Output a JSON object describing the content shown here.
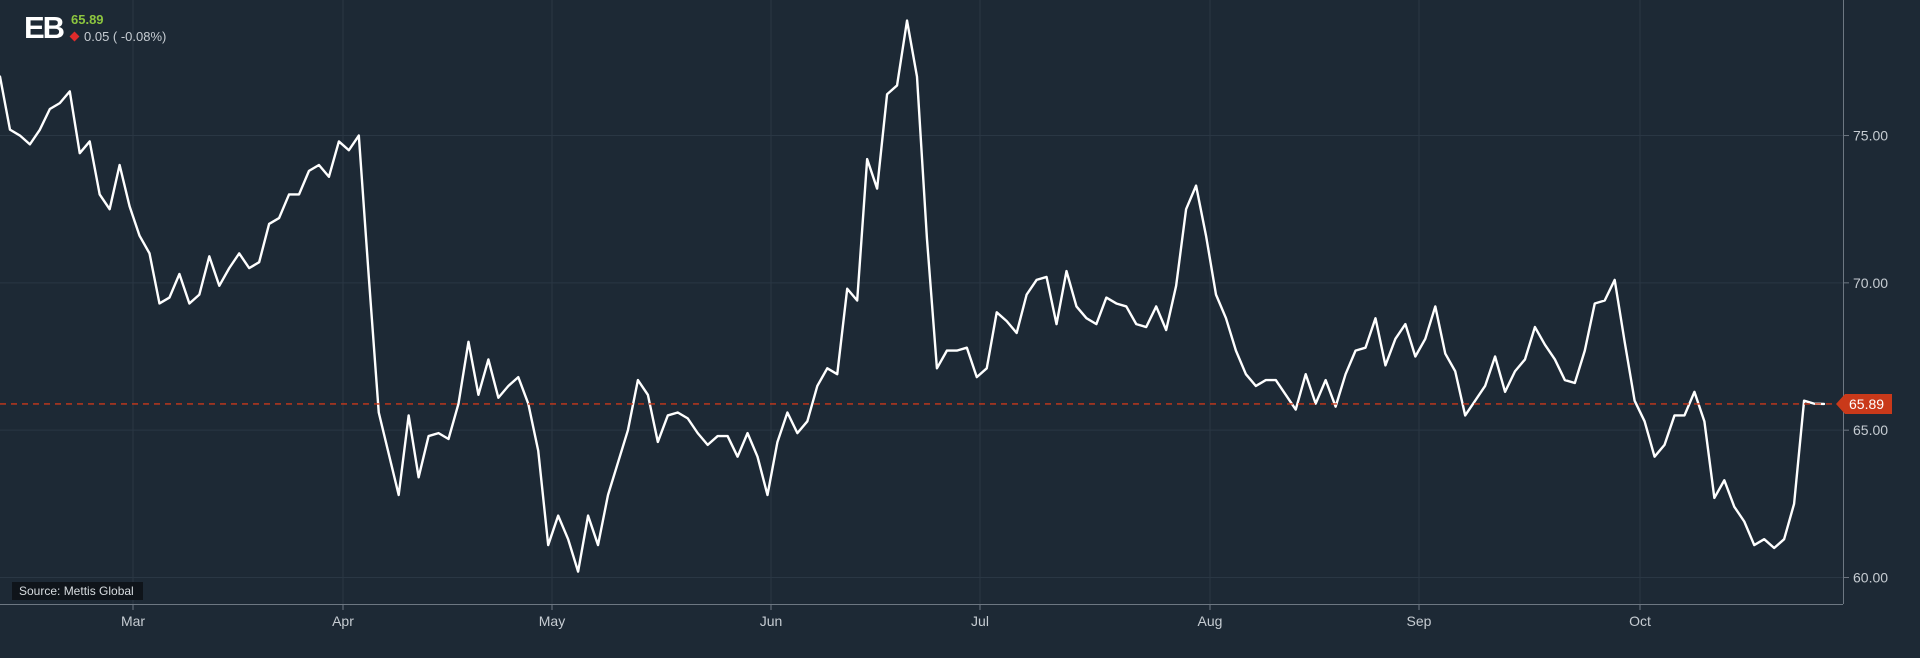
{
  "header": {
    "logo_text": "EB",
    "price": "65.89",
    "change": "0.05 ( -0.08%)",
    "price_color": "#8dc63f",
    "down_color": "#e02b2b",
    "change_arrow_icon": "down-diamond-icon"
  },
  "source": "Source: Mettis Global",
  "last_price_label": "65.89",
  "colors": {
    "background": "#1d2935",
    "line": "#ffffff",
    "grid": "#2a3744",
    "axis": "#6d7782",
    "tick_text": "#c6ccd2",
    "last_price": "#c9391a"
  },
  "chart_data": {
    "type": "line",
    "title": "",
    "xlabel": "",
    "ylabel": "",
    "x_tick_labels": [
      "Mar",
      "Apr",
      "May",
      "Jun",
      "Jul",
      "Aug",
      "Sep",
      "Oct"
    ],
    "y_tick_labels": [
      "60.00",
      "65.00",
      "70.00",
      "75.00"
    ],
    "ylim": [
      59.1,
      79.6
    ],
    "grid": true,
    "last_price": 65.89,
    "series": [
      {
        "values": [
          77.0,
          75.2,
          75.0,
          74.7,
          75.2,
          75.9,
          76.1,
          76.5,
          74.4,
          74.8,
          73.0,
          72.5,
          74.0,
          72.6,
          71.6,
          71.0,
          69.3,
          69.5,
          70.3,
          69.3,
          69.6,
          70.9,
          69.9,
          70.5,
          71.0,
          70.5,
          70.7,
          72.0,
          72.2,
          73.0,
          73.0,
          73.8,
          74.0,
          73.6,
          74.8,
          74.5,
          75.0,
          70.2,
          65.6,
          64.2,
          62.8,
          65.5,
          63.4,
          64.8,
          64.9,
          64.7,
          65.9,
          68.0,
          66.2,
          67.4,
          66.1,
          66.5,
          66.8,
          65.9,
          64.3,
          61.1,
          62.1,
          61.3,
          60.2,
          62.1,
          61.1,
          62.8,
          63.9,
          65.0,
          66.7,
          66.2,
          64.6,
          65.5,
          65.6,
          65.4,
          64.9,
          64.5,
          64.8,
          64.8,
          64.1,
          64.9,
          64.1,
          62.8,
          64.6,
          65.6,
          64.9,
          65.3,
          66.5,
          67.1,
          66.9,
          69.8,
          69.4,
          74.2,
          73.2,
          76.4,
          76.7,
          78.9,
          77.0,
          71.5,
          67.1,
          67.7,
          67.7,
          67.8,
          66.8,
          67.1,
          69.0,
          68.7,
          68.3,
          69.6,
          70.1,
          70.2,
          68.6,
          70.4,
          69.2,
          68.8,
          68.6,
          69.5,
          69.3,
          69.2,
          68.6,
          68.5,
          69.2,
          68.4,
          69.9,
          72.5,
          73.3,
          71.6,
          69.6,
          68.8,
          67.7,
          66.9,
          66.5,
          66.7,
          66.7,
          66.2,
          65.7,
          66.9,
          65.9,
          66.7,
          65.8,
          66.9,
          67.7,
          67.8,
          68.8,
          67.2,
          68.1,
          68.6,
          67.5,
          68.1,
          69.2,
          67.6,
          67.0,
          65.5,
          66.0,
          66.5,
          67.5,
          66.3,
          67.0,
          67.4,
          68.5,
          67.9,
          67.4,
          66.7,
          66.6,
          67.7,
          69.3,
          69.4,
          70.1,
          68.0,
          66.0,
          65.3,
          64.1,
          64.5,
          65.5,
          65.5,
          66.3,
          65.3,
          62.7,
          63.3,
          62.4,
          61.9,
          61.1,
          61.3,
          61.0,
          61.3,
          62.5,
          66.0,
          65.9,
          65.89
        ]
      }
    ]
  }
}
